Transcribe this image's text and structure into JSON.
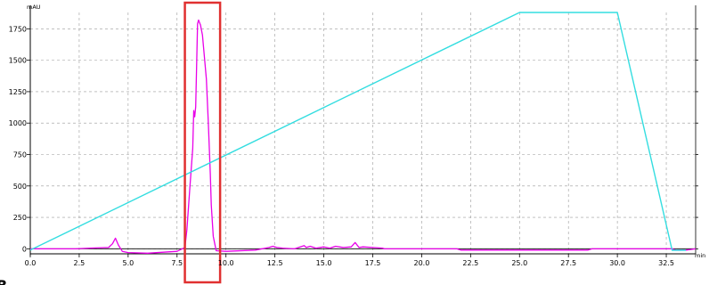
{
  "chart_data": {
    "type": "line",
    "title": "",
    "y_unit_label": "mAU",
    "x_unit_label": "min",
    "xlim": [
      0,
      34
    ],
    "ylim": [
      -40,
      1880
    ],
    "x_ticks": [
      0.0,
      2.5,
      5.0,
      7.5,
      10.0,
      12.5,
      15.0,
      17.5,
      20.0,
      22.5,
      25.0,
      27.5,
      30.0,
      32.5
    ],
    "x_tick_labels": [
      "0.0",
      "2.5",
      "5.0",
      "7.5",
      "10.0",
      "12.5",
      "15.0",
      "17.5",
      "20.0",
      "22.5",
      "25.0",
      "27.5",
      "30.0",
      "32.5"
    ],
    "y_ticks": [
      0,
      250,
      500,
      750,
      1000,
      1250,
      1500,
      1750
    ],
    "y_tick_labels": [
      "0",
      "250",
      "500",
      "750",
      "1000",
      "1250",
      "1500",
      "1750"
    ],
    "grid": true,
    "grid_style": "dashed",
    "baseline": 0,
    "series": [
      {
        "color": "#e800e8",
        "x": [
          0.0,
          2.3,
          3.0,
          4.0,
          4.2,
          4.35,
          4.5,
          4.7,
          5.0,
          6.0,
          7.5,
          7.9,
          8.0,
          8.15,
          8.3,
          8.35,
          8.4,
          8.45,
          8.55,
          8.6,
          8.7,
          8.8,
          9.0,
          9.1,
          9.2,
          9.25,
          9.35,
          9.5,
          10.0,
          11.5,
          12.2,
          12.4,
          12.6,
          12.9,
          13.5,
          14.0,
          14.1,
          14.3,
          14.6,
          15.0,
          15.3,
          15.6,
          16.0,
          16.4,
          16.6,
          16.8,
          17.0,
          17.5,
          18.0,
          18.1,
          21.8,
          22.0,
          28.5,
          28.7,
          32.8,
          33.0,
          33.5,
          34.0
        ],
        "y": [
          0,
          0,
          5,
          10,
          40,
          85,
          30,
          -20,
          -30,
          -35,
          -20,
          10,
          150,
          480,
          800,
          1100,
          1050,
          1130,
          1790,
          1820,
          1780,
          1700,
          1350,
          1000,
          600,
          350,
          100,
          -15,
          -20,
          -10,
          10,
          20,
          10,
          5,
          0,
          25,
          10,
          20,
          5,
          15,
          5,
          20,
          10,
          15,
          50,
          10,
          15,
          10,
          5,
          0,
          0,
          -10,
          -10,
          0,
          0,
          -12,
          -10,
          0
        ]
      },
      {
        "color": "#33dde0",
        "x": [
          0.0,
          25.0,
          30.0,
          32.8,
          33.5
        ],
        "y": [
          -10,
          1880,
          1880,
          -12,
          -12
        ]
      }
    ],
    "highlight_box": {
      "x_range": [
        7.9,
        9.7
      ],
      "y_range": [
        -40,
        1880
      ],
      "color": "#e03030"
    },
    "corner_mark": "B"
  }
}
